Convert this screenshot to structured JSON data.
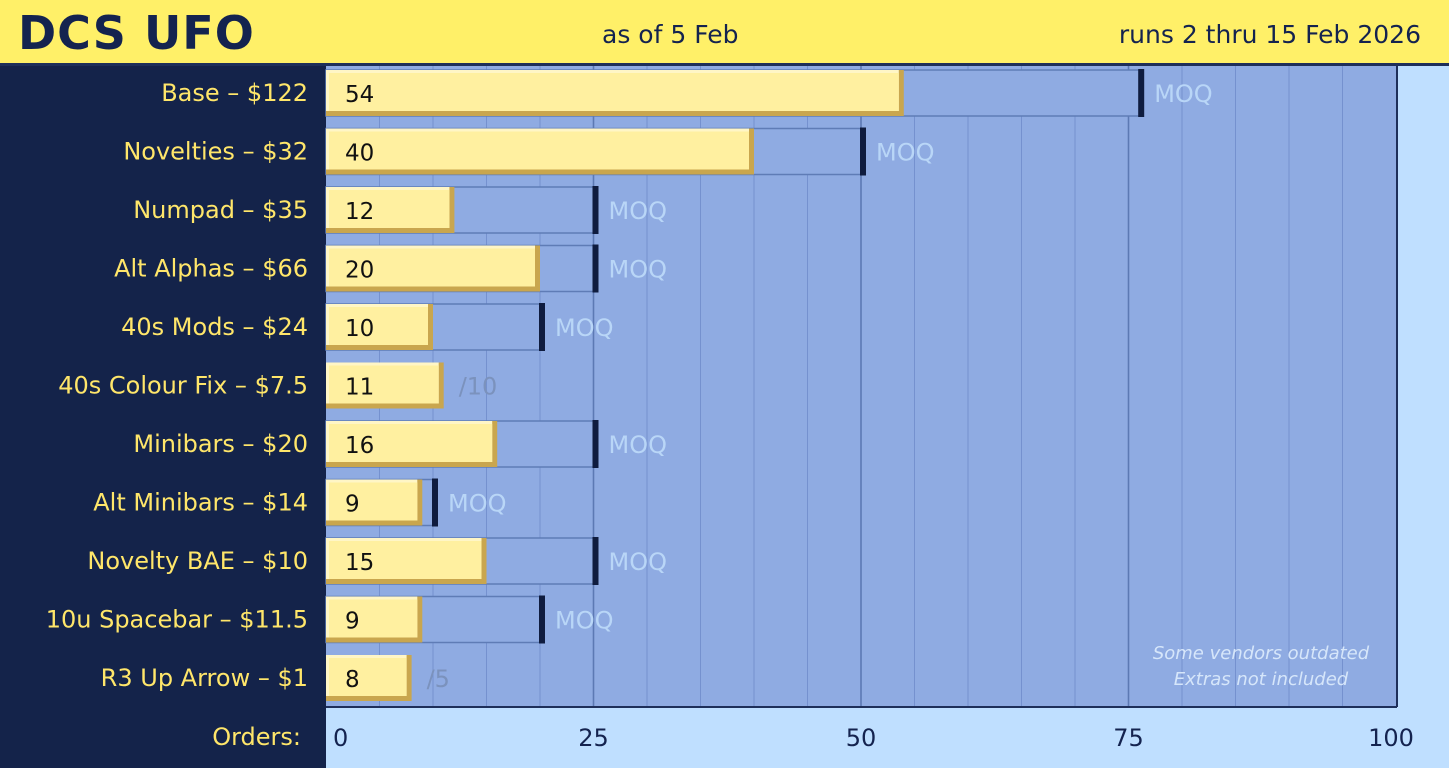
{
  "header": {
    "title": "DCS UFO",
    "as_of": "as of 5 Feb",
    "runs": "runs 2 thru 15 Feb 2026"
  },
  "colors": {
    "header_bg": "#fff068",
    "sidebar_bg": "#14234a",
    "plot_bg": "#8fabe2",
    "bar_fill": "#fff0a0",
    "target_box": "#8fabe2",
    "accent_text": "#ffe66a"
  },
  "chart_data": {
    "type": "bar",
    "orientation": "horizontal",
    "xlim": [
      0,
      100
    ],
    "xticks": [
      0,
      25,
      50,
      75,
      100
    ],
    "xlabel": "Orders:",
    "grid": true,
    "categories": [
      "Base – $122",
      "Novelties – $32",
      "Numpad – $35",
      "Alt Alphas – $66",
      "40s Mods – $24",
      "40s Colour Fix – $7.5",
      "Minibars – $20",
      "Alt Minibars – $14",
      "Novelty BAE – $10",
      "10u Spacebar – $11.5",
      "R3 Up Arrow – $1"
    ],
    "values": [
      54,
      40,
      12,
      20,
      10,
      11,
      16,
      9,
      15,
      9,
      8
    ],
    "targets": [
      76,
      50,
      25,
      25,
      20,
      10,
      25,
      10,
      25,
      20,
      5
    ],
    "target_labels": [
      "MOQ",
      "MOQ",
      "MOQ",
      "MOQ",
      "MOQ",
      "/10",
      "MOQ",
      "MOQ",
      "MOQ",
      "MOQ",
      "/5"
    ],
    "annotations": [
      "Some vendors outdated",
      "Extras not included"
    ]
  }
}
